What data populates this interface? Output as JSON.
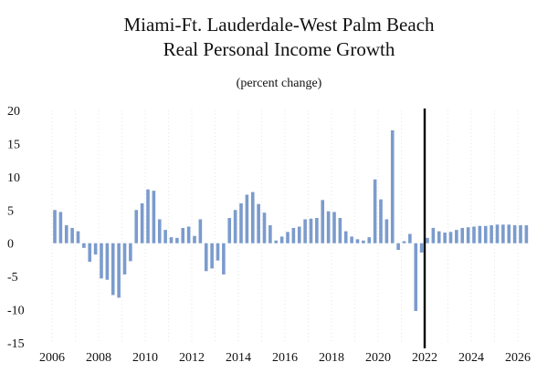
{
  "chart_data": {
    "type": "bar",
    "title_lines": [
      "Miami-Ft. Lauderdale-West Palm Beach",
      "Real Personal Income Growth"
    ],
    "subtitle": "(percent change)",
    "xlabel": "",
    "ylabel": "",
    "ylim": [
      -15,
      20
    ],
    "yticks": [
      20,
      15,
      10,
      5,
      0,
      -5,
      -10,
      -15
    ],
    "xlim": [
      2006,
      2026.5
    ],
    "xticks": [
      2006,
      2008,
      2010,
      2012,
      2014,
      2016,
      2018,
      2020,
      2022,
      2024,
      2026
    ],
    "forecast_line_x": 2022,
    "bar_color": "#7b9bcc",
    "grid": "vertical dotted",
    "series": [
      {
        "name": "Real Personal Income Growth",
        "x": [
          2006.0,
          2006.25,
          2006.5,
          2006.75,
          2007.0,
          2007.25,
          2007.5,
          2007.75,
          2008.0,
          2008.25,
          2008.5,
          2008.75,
          2009.0,
          2009.25,
          2009.5,
          2009.75,
          2010.0,
          2010.25,
          2010.5,
          2010.75,
          2011.0,
          2011.25,
          2011.5,
          2011.75,
          2012.0,
          2012.25,
          2012.5,
          2012.75,
          2013.0,
          2013.25,
          2013.5,
          2013.75,
          2014.0,
          2014.25,
          2014.5,
          2014.75,
          2015.0,
          2015.25,
          2015.5,
          2015.75,
          2016.0,
          2016.25,
          2016.5,
          2016.75,
          2017.0,
          2017.25,
          2017.5,
          2017.75,
          2018.0,
          2018.25,
          2018.5,
          2018.75,
          2019.0,
          2019.25,
          2019.5,
          2019.75,
          2020.0,
          2020.25,
          2020.5,
          2020.75,
          2021.0,
          2021.25,
          2021.5,
          2021.75,
          2022.0,
          2022.25,
          2022.5,
          2022.75,
          2023.0,
          2023.25,
          2023.5,
          2023.75,
          2024.0,
          2024.25,
          2024.5,
          2024.75,
          2025.0,
          2025.25,
          2025.5,
          2025.75,
          2026.0,
          2026.25
        ],
        "values": [
          5.0,
          4.7,
          2.7,
          2.3,
          1.8,
          -0.7,
          -2.8,
          -1.7,
          -5.3,
          -5.5,
          -7.8,
          -8.2,
          -4.7,
          -2.7,
          5.0,
          6.0,
          8.1,
          7.9,
          3.6,
          2.0,
          0.9,
          0.8,
          2.3,
          2.5,
          1.1,
          3.6,
          -4.2,
          -3.8,
          -2.6,
          -4.7,
          3.8,
          5.0,
          6.0,
          7.3,
          7.7,
          5.9,
          4.6,
          2.7,
          0.4,
          1.0,
          1.7,
          2.3,
          2.5,
          3.6,
          3.7,
          3.8,
          6.5,
          4.8,
          4.7,
          3.8,
          1.8,
          1.0,
          0.6,
          0.4,
          0.9,
          9.6,
          6.6,
          3.6,
          17.0,
          -1.0,
          0.3,
          1.4,
          -10.2,
          -1.4,
          0.8,
          2.3,
          1.8,
          1.6,
          1.7,
          2.0,
          2.3,
          2.4,
          2.5,
          2.6,
          2.6,
          2.7,
          2.8,
          2.8,
          2.8,
          2.7,
          2.7,
          2.7
        ]
      }
    ]
  }
}
